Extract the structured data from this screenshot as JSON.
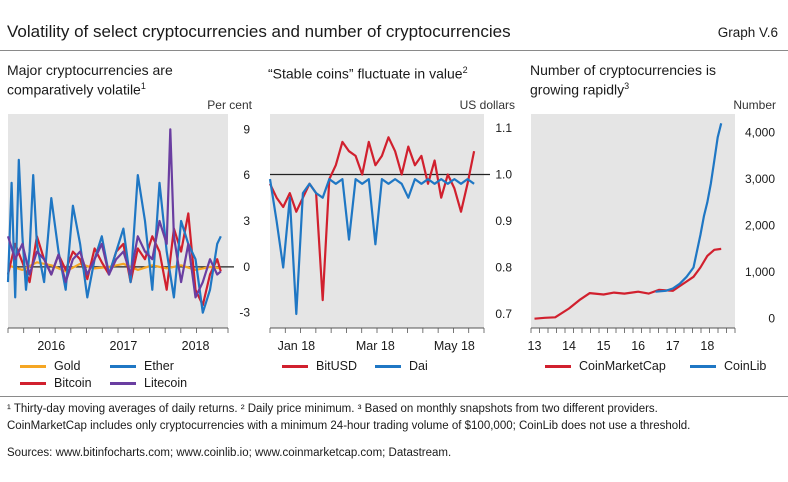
{
  "title": "Volatility of select cryptocurrencies and number of cryptocurrencies",
  "graph_no": "Graph V.6",
  "panels": [
    {
      "title_line1": "Major cryptocurrencies are",
      "title_line2": "comparatively volatile",
      "title_sup": "1",
      "unit": "Per cent"
    },
    {
      "title_line1": "“Stable coins” fluctuate in value",
      "title_sup": "2",
      "unit": "US dollars"
    },
    {
      "title_line1": "Number of cryptocurrencies is",
      "title_line2": "growing rapidly",
      "title_sup": "3",
      "unit": "Number"
    }
  ],
  "footnotes": {
    "line1": "¹ Thirty-day moving averages of daily returns.   ² Daily price minimum.   ³ Based on monthly snapshots from two different providers.",
    "line2": "CoinMarketCap includes only cryptocurrencies with a minimum 24-hour trading volume of $100,000; CoinLib does not use a threshold.",
    "sources": "Sources: www.bitinfocharts.com; www.coinlib.io; www.coinmarketcap.com; Datastream."
  },
  "colors": {
    "gold": "#f5a623",
    "bitcoin": "#d1202e",
    "ether": "#1f77c4",
    "litecoin": "#6a3ea1",
    "panel_bg": "#e5e5e5",
    "axis": "#555555"
  },
  "chart_data": [
    {
      "type": "line",
      "title": "Major cryptocurrencies are comparatively volatile",
      "ylabel": "Per cent",
      "ylim": [
        -4,
        10
      ],
      "y_ticks": [
        9,
        6,
        3,
        0,
        -3
      ],
      "x_ticks": [
        "2016",
        "2017",
        "2018"
      ],
      "xlim": [
        2015.4,
        2018.45
      ],
      "series": [
        {
          "name": "Gold",
          "x": [
            2015.4,
            2015.6,
            2015.8,
            2016.0,
            2016.2,
            2016.4,
            2016.6,
            2016.8,
            2017.0,
            2017.2,
            2017.4,
            2017.6,
            2017.8,
            2018.0,
            2018.2,
            2018.35
          ],
          "y": [
            0.1,
            -0.2,
            0.3,
            0.1,
            -0.3,
            0.2,
            -0.1,
            0.0,
            0.2,
            -0.2,
            0.1,
            -0.1,
            0.1,
            -0.2,
            0.0,
            -0.1
          ]
        },
        {
          "name": "Bitcoin",
          "x": [
            2015.4,
            2015.5,
            2015.6,
            2015.7,
            2015.8,
            2015.9,
            2016.0,
            2016.1,
            2016.2,
            2016.3,
            2016.4,
            2016.5,
            2016.6,
            2016.7,
            2016.8,
            2016.9,
            2017.0,
            2017.1,
            2017.2,
            2017.3,
            2017.4,
            2017.5,
            2017.6,
            2017.7,
            2017.8,
            2017.9,
            2018.0,
            2018.1,
            2018.2,
            2018.3,
            2018.35
          ],
          "y": [
            -0.5,
            1.5,
            0.3,
            -1.0,
            2.0,
            0.5,
            -0.5,
            0.8,
            -0.2,
            1.0,
            0.5,
            -0.8,
            1.2,
            0.3,
            -0.5,
            1.0,
            1.5,
            -1.0,
            1.2,
            0.5,
            2.0,
            1.0,
            -1.5,
            2.5,
            1.0,
            3.5,
            -1.5,
            -2.5,
            -0.5,
            0.5,
            -0.3
          ]
        },
        {
          "name": "Ether",
          "x": [
            2015.4,
            2015.45,
            2015.5,
            2015.55,
            2015.6,
            2015.65,
            2015.7,
            2015.75,
            2015.8,
            2015.9,
            2016.0,
            2016.1,
            2016.2,
            2016.3,
            2016.4,
            2016.5,
            2016.6,
            2016.7,
            2016.8,
            2016.9,
            2017.0,
            2017.1,
            2017.2,
            2017.3,
            2017.4,
            2017.5,
            2017.6,
            2017.7,
            2017.8,
            2017.9,
            2018.0,
            2018.1,
            2018.2,
            2018.3,
            2018.35
          ],
          "y": [
            -1.0,
            5.5,
            -2.0,
            7.0,
            2.0,
            -1.5,
            1.0,
            6.0,
            1.5,
            -1.0,
            4.5,
            1.0,
            -1.5,
            4.0,
            1.5,
            -2.0,
            0.5,
            2.0,
            -0.5,
            1.0,
            2.5,
            -1.0,
            6.0,
            3.0,
            -1.5,
            5.5,
            1.0,
            -2.0,
            3.0,
            1.5,
            0.5,
            -3.0,
            -1.5,
            1.5,
            2.0
          ]
        },
        {
          "name": "Litecoin",
          "x": [
            2015.4,
            2015.5,
            2015.6,
            2015.7,
            2015.8,
            2015.9,
            2016.0,
            2016.1,
            2016.2,
            2016.3,
            2016.4,
            2016.5,
            2016.6,
            2016.7,
            2016.8,
            2016.9,
            2017.0,
            2017.1,
            2017.2,
            2017.3,
            2017.4,
            2017.5,
            2017.6,
            2017.65,
            2017.7,
            2017.8,
            2017.9,
            2018.0,
            2018.1,
            2018.2,
            2018.3,
            2018.35
          ],
          "y": [
            2.0,
            0.5,
            1.5,
            -0.5,
            1.0,
            0.5,
            -0.5,
            0.8,
            -1.0,
            0.5,
            1.0,
            -0.5,
            0.5,
            1.5,
            -0.5,
            0.5,
            1.0,
            -0.5,
            2.0,
            1.0,
            0.5,
            3.0,
            1.5,
            9.0,
            2.0,
            -1.0,
            1.5,
            -2.0,
            -1.0,
            0.5,
            -0.5,
            -0.3
          ]
        }
      ]
    },
    {
      "type": "line",
      "title": "“Stable coins” fluctuate in value",
      "ylabel": "US dollars",
      "ylim": [
        0.67,
        1.13
      ],
      "y_ticks": [
        1.1,
        1.0,
        0.9,
        0.8,
        0.7
      ],
      "x_ticks": [
        "Jan 18",
        "Mar 18",
        "May 18"
      ],
      "xlim": [
        0,
        6.5
      ],
      "series": [
        {
          "name": "BitUSD",
          "x": [
            0,
            0.2,
            0.4,
            0.6,
            0.8,
            1.0,
            1.2,
            1.4,
            1.6,
            1.8,
            2.0,
            2.2,
            2.4,
            2.6,
            2.8,
            3.0,
            3.2,
            3.4,
            3.6,
            3.8,
            4.0,
            4.2,
            4.4,
            4.6,
            4.8,
            5.0,
            5.2,
            5.4,
            5.6,
            5.8,
            6.0,
            6.2
          ],
          "y": [
            0.98,
            0.95,
            0.93,
            0.96,
            0.92,
            0.95,
            0.98,
            0.96,
            0.73,
            0.99,
            1.02,
            1.07,
            1.05,
            1.04,
            1.0,
            1.07,
            1.02,
            1.04,
            1.08,
            1.05,
            1.0,
            1.06,
            1.02,
            1.04,
            0.98,
            1.03,
            0.95,
            1.0,
            0.97,
            0.92,
            0.98,
            1.05
          ]
        },
        {
          "name": "Dai",
          "x": [
            0,
            0.2,
            0.4,
            0.6,
            0.8,
            1.0,
            1.2,
            1.4,
            1.6,
            1.8,
            2.0,
            2.2,
            2.4,
            2.6,
            2.8,
            3.0,
            3.2,
            3.4,
            3.6,
            3.8,
            4.0,
            4.2,
            4.4,
            4.6,
            4.8,
            5.0,
            5.2,
            5.4,
            5.6,
            5.8,
            6.0,
            6.2
          ],
          "y": [
            0.99,
            0.9,
            0.8,
            0.95,
            0.7,
            0.96,
            0.98,
            0.96,
            0.95,
            0.99,
            0.98,
            0.99,
            0.86,
            0.99,
            0.98,
            0.99,
            0.85,
            0.99,
            0.98,
            0.99,
            0.98,
            0.95,
            0.99,
            0.98,
            0.99,
            0.98,
            0.99,
            0.98,
            0.99,
            0.98,
            0.99,
            0.98
          ]
        }
      ]
    },
    {
      "type": "line",
      "title": "Number of cryptocurrencies is growing rapidly",
      "ylabel": "Number",
      "ylim": [
        -200,
        4400
      ],
      "y_ticks": [
        4000,
        3000,
        2000,
        1000,
        0
      ],
      "x_ticks": [
        "13",
        "14",
        "15",
        "16",
        "17",
        "18"
      ],
      "xlim": [
        12.9,
        18.8
      ],
      "series": [
        {
          "name": "CoinMarketCap",
          "x": [
            13.0,
            13.3,
            13.6,
            14.0,
            14.3,
            14.6,
            15.0,
            15.3,
            15.6,
            16.0,
            16.3,
            16.6,
            17.0,
            17.2,
            17.4,
            17.6,
            17.8,
            18.0,
            18.2,
            18.4
          ],
          "y": [
            0,
            20,
            30,
            220,
            400,
            550,
            520,
            560,
            540,
            580,
            540,
            620,
            600,
            700,
            800,
            900,
            1100,
            1350,
            1480,
            1500
          ]
        },
        {
          "name": "CoinLib",
          "x": [
            16.5,
            16.8,
            17.0,
            17.2,
            17.4,
            17.6,
            17.8,
            17.9,
            18.0,
            18.1,
            18.2,
            18.3,
            18.4
          ],
          "y": [
            580,
            600,
            650,
            750,
            900,
            1100,
            1800,
            2200,
            2500,
            2900,
            3400,
            3900,
            4200
          ]
        }
      ]
    }
  ],
  "legends": [
    [
      {
        "name": "Gold",
        "color": "#f5a623"
      },
      {
        "name": "Ether",
        "color": "#1f77c4"
      },
      {
        "name": "Bitcoin",
        "color": "#d1202e"
      },
      {
        "name": "Litecoin",
        "color": "#6a3ea1"
      }
    ],
    [
      {
        "name": "BitUSD",
        "color": "#d1202e"
      },
      {
        "name": "Dai",
        "color": "#1f77c4"
      }
    ],
    [
      {
        "name": "CoinMarketCap",
        "color": "#d1202e"
      },
      {
        "name": "CoinLib",
        "color": "#1f77c4"
      }
    ]
  ]
}
